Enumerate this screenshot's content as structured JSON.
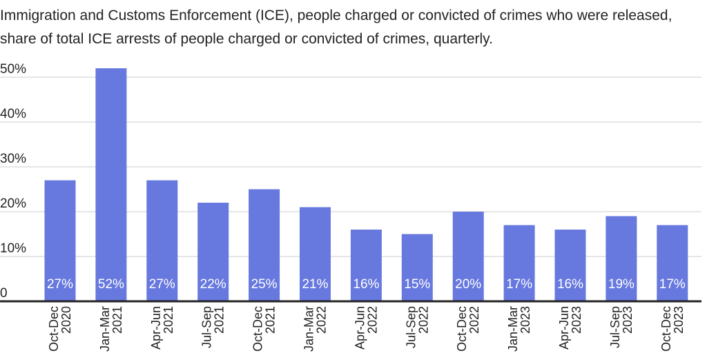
{
  "chart_data": {
    "type": "bar",
    "title": "Immigration and Customs Enforcement (ICE), people charged or convicted of crimes who were released, share of total ICE arrests of people charged or convicted of crimes, quarterly.",
    "categories": [
      [
        "Oct-Dec",
        "2020"
      ],
      [
        "Jan-Mar",
        "2021"
      ],
      [
        "Apr-Jun",
        "2021"
      ],
      [
        "Jul-Sep",
        "2021"
      ],
      [
        "Oct-Dec",
        "2021"
      ],
      [
        "Jan-Mar",
        "2022"
      ],
      [
        "Apr-Jun",
        "2022"
      ],
      [
        "Jul-Sep",
        "2022"
      ],
      [
        "Oct-Dec",
        "2022"
      ],
      [
        "Jan-Mar",
        "2023"
      ],
      [
        "Apr-Jun",
        "2023"
      ],
      [
        "Jul-Sep",
        "2023"
      ],
      [
        "Oct-Dec",
        "2023"
      ]
    ],
    "values": [
      27,
      52,
      27,
      22,
      25,
      21,
      16,
      15,
      20,
      17,
      16,
      19,
      17
    ],
    "data_labels": [
      "27%",
      "52%",
      "27%",
      "22%",
      "25%",
      "21%",
      "16%",
      "15%",
      "20%",
      "17%",
      "16%",
      "19%",
      "17%"
    ],
    "ylim": [
      0,
      50
    ],
    "yticks": [
      0,
      10,
      20,
      30,
      40,
      50
    ],
    "ytick_labels": [
      "0",
      "10%",
      "20%",
      "30%",
      "40%",
      "50%"
    ],
    "grid": true,
    "bar_color": "#6778de",
    "grid_color": "#cccccc",
    "axis_color": "#222222"
  }
}
